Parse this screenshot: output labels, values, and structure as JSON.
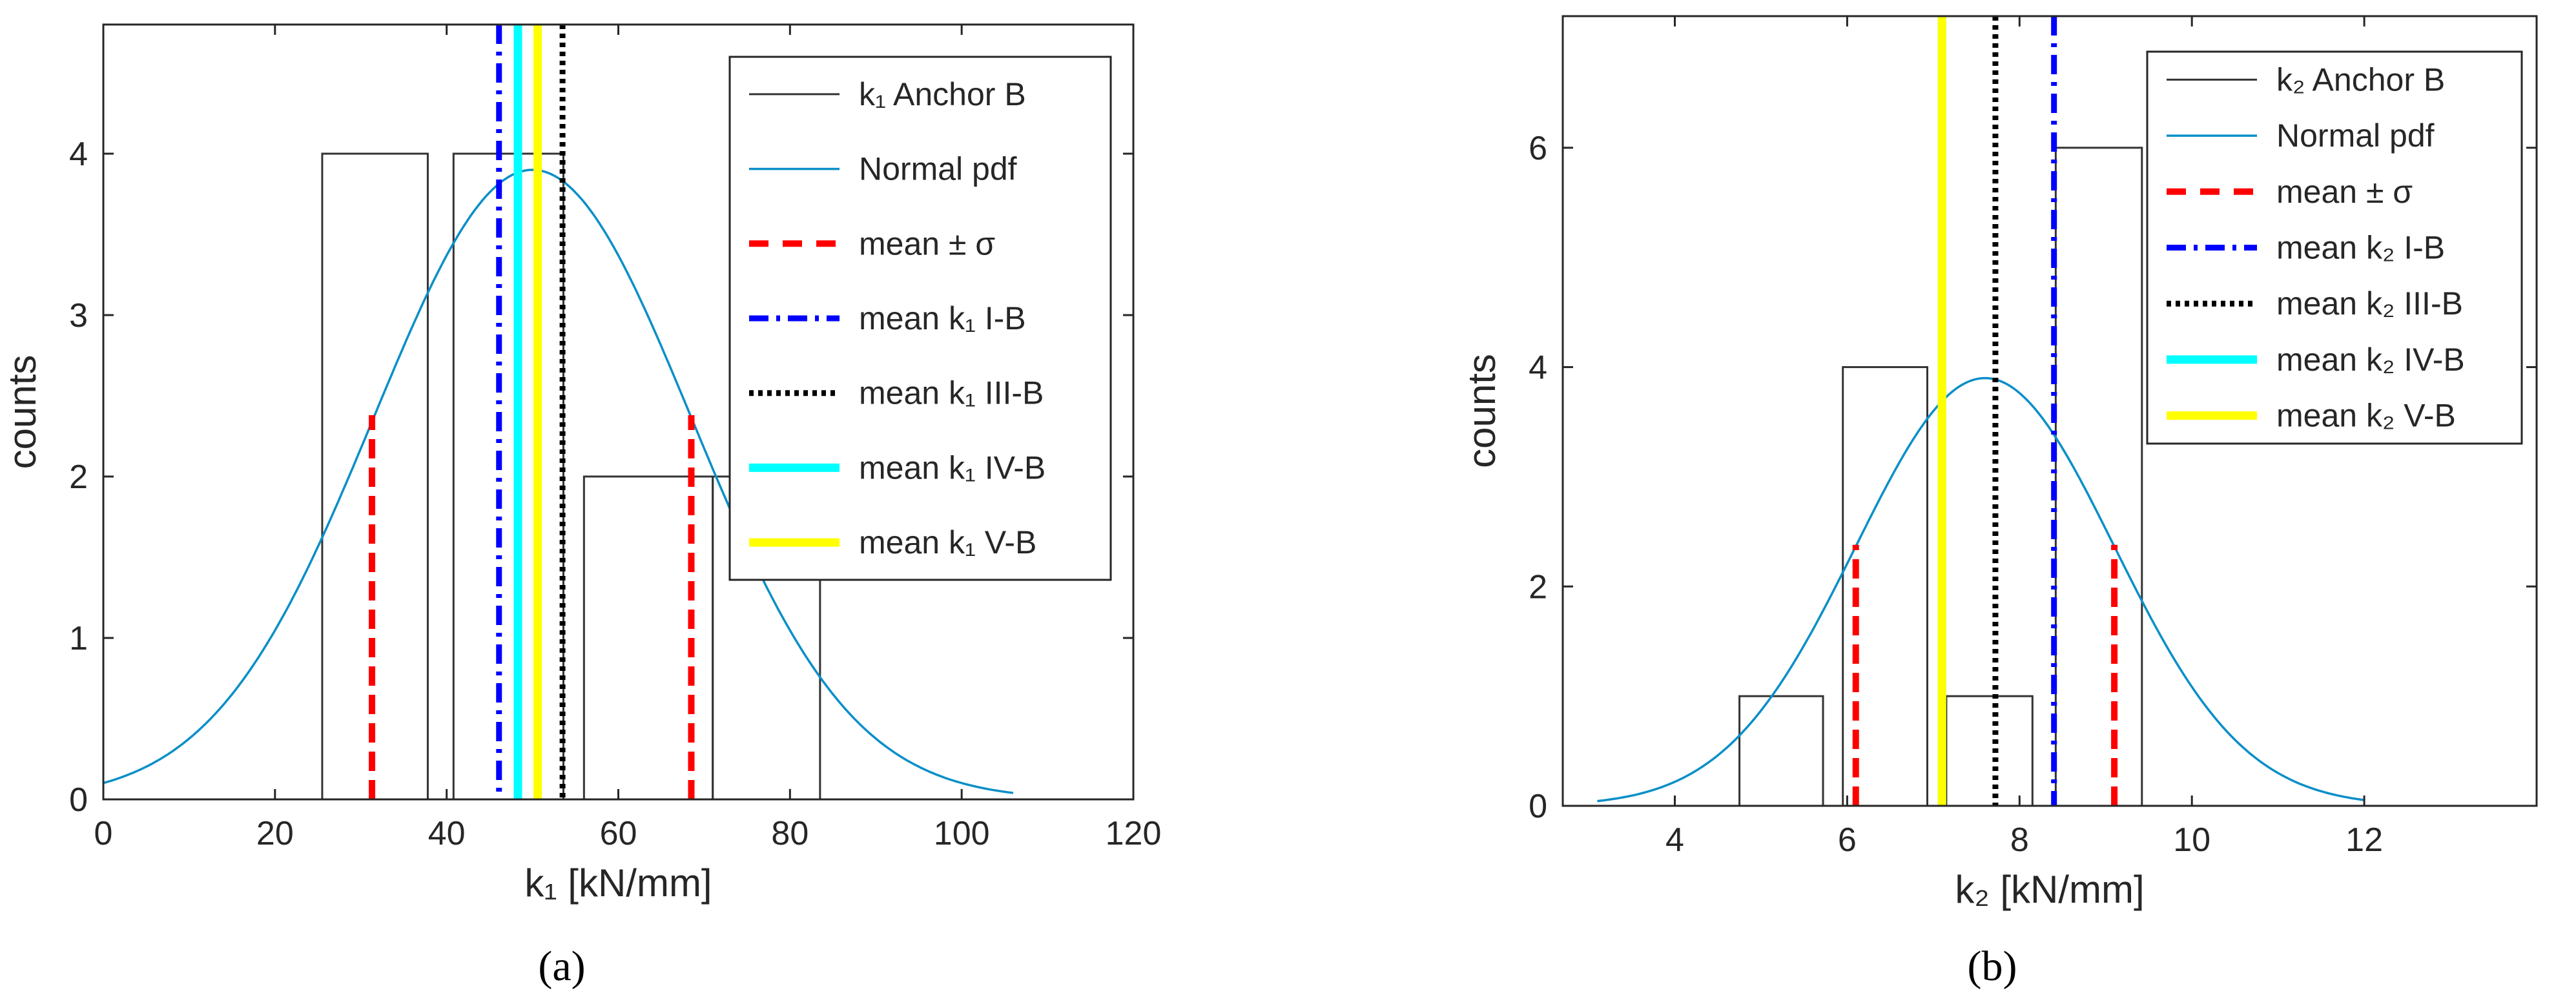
{
  "chart_data": [
    {
      "type": "bar",
      "panel": "(a)",
      "xlabel": "k₁ [kN/mm]",
      "ylabel": "counts",
      "xlim": [
        0,
        120
      ],
      "ylim": [
        0,
        4.8
      ],
      "xticks": [
        0,
        20,
        40,
        60,
        80,
        100,
        120
      ],
      "yticks": [
        0,
        1,
        2,
        3,
        4
      ],
      "histogram": {
        "name": "k₁ Anchor B",
        "bins": [
          {
            "x0": 25.5,
            "x1": 37.8,
            "count": 4
          },
          {
            "x0": 40.8,
            "x1": 53.6,
            "count": 4
          },
          {
            "x0": 56.0,
            "x1": 71.0,
            "count": 2
          },
          {
            "x0": 71.0,
            "x1": 83.5,
            "count": 2
          }
        ]
      },
      "normal_pdf": {
        "name": "Normal pdf",
        "mean": 50.0,
        "sigma": 18.5,
        "peak": 3.9,
        "x_from": 0,
        "x_to": 106
      },
      "sigma_lines": {
        "name": "mean ± σ",
        "x": [
          31.3,
          68.5
        ],
        "height": 2.38
      },
      "mean_lines": [
        {
          "name": "mean k₁ I-B",
          "x": 46.1,
          "color": "#0000ff",
          "style": "dashdot"
        },
        {
          "name": "mean k₁ III-B",
          "x": 53.5,
          "color": "#000000",
          "style": "dotted"
        },
        {
          "name": "mean k₁ IV-B",
          "x": 48.3,
          "color": "#00ffff",
          "style": "solid"
        },
        {
          "name": "mean k₁ V-B",
          "x": 50.6,
          "color": "#ffff00",
          "style": "solid"
        }
      ],
      "legend": [
        {
          "label": "k₁ Anchor B",
          "style": "hist"
        },
        {
          "label": "Normal pdf",
          "style": "pdf"
        },
        {
          "label": "mean ± σ",
          "style": "sigma"
        },
        {
          "label": "mean k₁ I-B",
          "style": "dashdot",
          "color": "#0000ff"
        },
        {
          "label": "mean k₁ III-B",
          "style": "dotted",
          "color": "#000000"
        },
        {
          "label": "mean k₁ IV-B",
          "style": "solid",
          "color": "#00ffff"
        },
        {
          "label": "mean k₁ V-B",
          "style": "solid",
          "color": "#ffff00"
        }
      ],
      "legend_position": "top-right"
    },
    {
      "type": "bar",
      "panel": "(b)",
      "xlabel": "k₂ [kN/mm]",
      "ylabel": "counts",
      "xlim": [
        2.7,
        14.0
      ],
      "ylim": [
        0,
        7.2
      ],
      "xticks": [
        4,
        6,
        8,
        10,
        12
      ],
      "yticks": [
        0,
        2,
        4,
        6
      ],
      "histogram": {
        "name": "k₂ Anchor B",
        "bins": [
          {
            "x0": 4.75,
            "x1": 5.72,
            "count": 1
          },
          {
            "x0": 5.95,
            "x1": 6.93,
            "count": 4
          },
          {
            "x0": 7.15,
            "x1": 8.15,
            "count": 1
          },
          {
            "x0": 8.42,
            "x1": 9.42,
            "count": 6
          }
        ]
      },
      "normal_pdf": {
        "name": "Normal pdf",
        "mean": 7.6,
        "sigma": 1.5,
        "peak": 3.9,
        "x_from": 3.1,
        "x_to": 12.0
      },
      "sigma_lines": {
        "name": "mean ± σ",
        "x": [
          6.1,
          9.1
        ],
        "height": 2.38
      },
      "mean_lines": [
        {
          "name": "mean k₂ I-B",
          "x": 8.4,
          "color": "#0000ff",
          "style": "dashdot"
        },
        {
          "name": "mean k₂ III-B",
          "x": 7.72,
          "color": "#000000",
          "style": "dotted"
        },
        {
          "name": "mean k₂ IV-B",
          "x": 7.1,
          "color": "#00ffff",
          "style": "solid"
        },
        {
          "name": "mean k₂ V-B",
          "x": 7.1,
          "color": "#ffff00",
          "style": "solid"
        }
      ],
      "legend": [
        {
          "label": "k₂ Anchor B",
          "style": "hist"
        },
        {
          "label": "Normal pdf",
          "style": "pdf"
        },
        {
          "label": "mean ± σ",
          "style": "sigma"
        },
        {
          "label": "mean k₂ I-B",
          "style": "dashdot",
          "color": "#0000ff"
        },
        {
          "label": "mean k₂ III-B",
          "style": "dotted",
          "color": "#000000"
        },
        {
          "label": "mean k₂ IV-B",
          "style": "solid",
          "color": "#00ffff"
        },
        {
          "label": "mean k₂ V-B",
          "style": "solid",
          "color": "#ffff00"
        }
      ],
      "legend_position": "top-right"
    }
  ],
  "colors": {
    "histogram": "#333333",
    "pdf": "#0a8fc8",
    "sigma": "#ff0000",
    "axis": "#262626"
  }
}
